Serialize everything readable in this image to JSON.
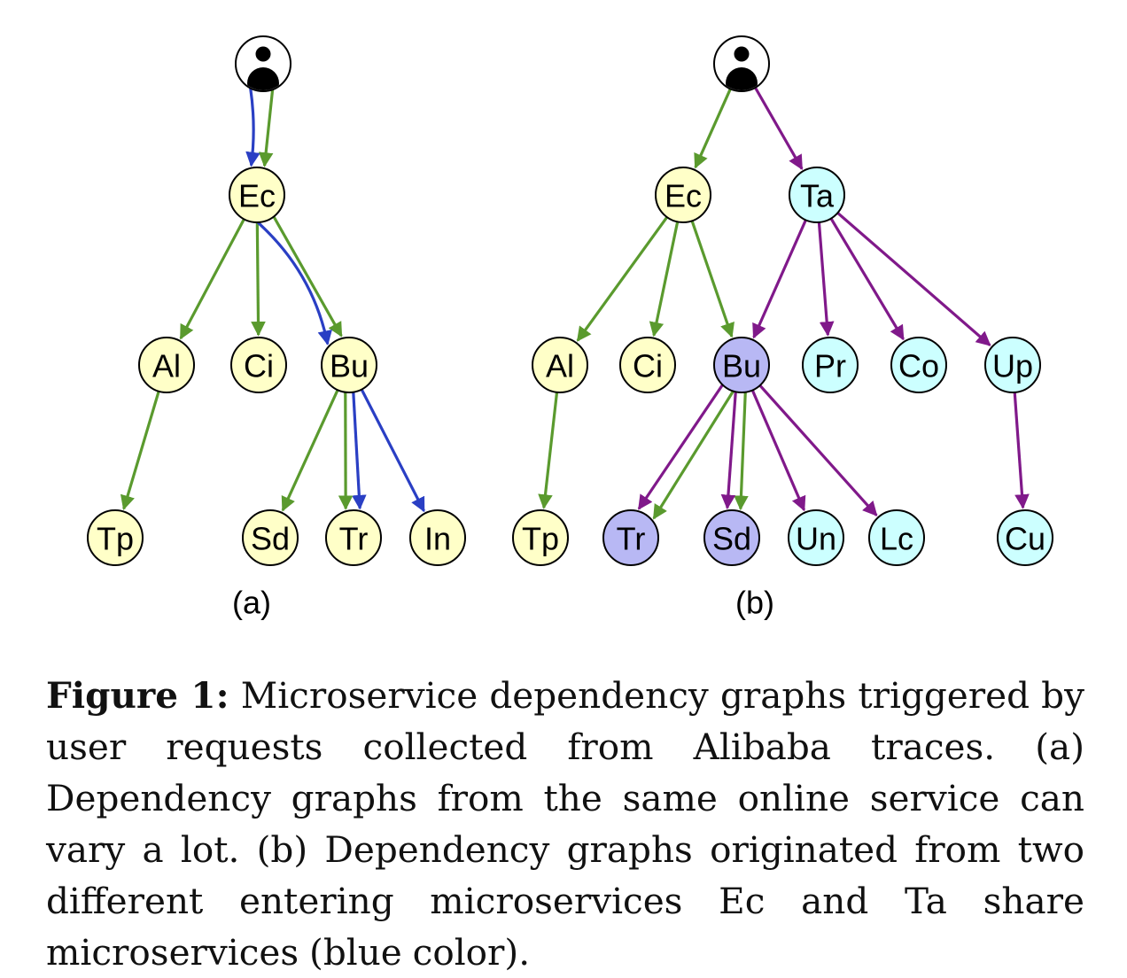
{
  "colors": {
    "green": "#5a9a2e",
    "blue": "#2a3fc4",
    "purple": "#80198a",
    "yellow_fill": "#ffffc8",
    "cyan_fill": "#ccffff",
    "lavender_fill": "#b8b8f4"
  },
  "graphs": [
    {
      "id": "a",
      "panel_label": "(a)",
      "nodes": [
        {
          "id": "user",
          "type": "user",
          "label": "",
          "fill": "white"
        },
        {
          "id": "Ec",
          "label": "Ec",
          "fill": "yellow"
        },
        {
          "id": "Al",
          "label": "Al",
          "fill": "yellow"
        },
        {
          "id": "Ci",
          "label": "Ci",
          "fill": "yellow"
        },
        {
          "id": "Bu",
          "label": "Bu",
          "fill": "yellow"
        },
        {
          "id": "Tp",
          "label": "Tp",
          "fill": "yellow"
        },
        {
          "id": "Sd",
          "label": "Sd",
          "fill": "yellow"
        },
        {
          "id": "Tr",
          "label": "Tr",
          "fill": "yellow"
        },
        {
          "id": "In",
          "label": "In",
          "fill": "yellow"
        }
      ],
      "edges": [
        {
          "from": "user",
          "to": "Ec",
          "color": "green"
        },
        {
          "from": "user",
          "to": "Ec",
          "color": "blue"
        },
        {
          "from": "Ec",
          "to": "Al",
          "color": "green"
        },
        {
          "from": "Ec",
          "to": "Ci",
          "color": "green"
        },
        {
          "from": "Ec",
          "to": "Bu",
          "color": "green"
        },
        {
          "from": "Ec",
          "to": "Bu",
          "color": "blue"
        },
        {
          "from": "Al",
          "to": "Tp",
          "color": "green"
        },
        {
          "from": "Bu",
          "to": "Sd",
          "color": "green"
        },
        {
          "from": "Bu",
          "to": "Tr",
          "color": "blue"
        },
        {
          "from": "Bu",
          "to": "Tr",
          "color": "green"
        },
        {
          "from": "Bu",
          "to": "In",
          "color": "blue"
        }
      ]
    },
    {
      "id": "b",
      "panel_label": "(b)",
      "nodes": [
        {
          "id": "user",
          "type": "user",
          "label": "",
          "fill": "white"
        },
        {
          "id": "Ec",
          "label": "Ec",
          "fill": "yellow"
        },
        {
          "id": "Ta",
          "label": "Ta",
          "fill": "cyan"
        },
        {
          "id": "Al",
          "label": "Al",
          "fill": "yellow"
        },
        {
          "id": "Ci",
          "label": "Ci",
          "fill": "yellow"
        },
        {
          "id": "Bu",
          "label": "Bu",
          "fill": "lavender"
        },
        {
          "id": "Pr",
          "label": "Pr",
          "fill": "cyan"
        },
        {
          "id": "Co",
          "label": "Co",
          "fill": "cyan"
        },
        {
          "id": "Up",
          "label": "Up",
          "fill": "cyan"
        },
        {
          "id": "Tp",
          "label": "Tp",
          "fill": "yellow"
        },
        {
          "id": "Tr",
          "label": "Tr",
          "fill": "lavender"
        },
        {
          "id": "Sd",
          "label": "Sd",
          "fill": "lavender"
        },
        {
          "id": "Un",
          "label": "Un",
          "fill": "cyan"
        },
        {
          "id": "Lc",
          "label": "Lc",
          "fill": "cyan"
        },
        {
          "id": "Cu",
          "label": "Cu",
          "fill": "cyan"
        }
      ],
      "edges": [
        {
          "from": "user",
          "to": "Ec",
          "color": "green"
        },
        {
          "from": "user",
          "to": "Ta",
          "color": "purple"
        },
        {
          "from": "Ec",
          "to": "Al",
          "color": "green"
        },
        {
          "from": "Ec",
          "to": "Ci",
          "color": "green"
        },
        {
          "from": "Ec",
          "to": "Bu",
          "color": "green"
        },
        {
          "from": "Ta",
          "to": "Bu",
          "color": "purple"
        },
        {
          "from": "Ta",
          "to": "Pr",
          "color": "purple"
        },
        {
          "from": "Ta",
          "to": "Co",
          "color": "purple"
        },
        {
          "from": "Ta",
          "to": "Up",
          "color": "purple"
        },
        {
          "from": "Al",
          "to": "Tp",
          "color": "green"
        },
        {
          "from": "Bu",
          "to": "Tr",
          "color": "green"
        },
        {
          "from": "Bu",
          "to": "Tr",
          "color": "purple"
        },
        {
          "from": "Bu",
          "to": "Sd",
          "color": "green"
        },
        {
          "from": "Bu",
          "to": "Sd",
          "color": "purple"
        },
        {
          "from": "Bu",
          "to": "Un",
          "color": "purple"
        },
        {
          "from": "Bu",
          "to": "Lc",
          "color": "purple"
        },
        {
          "from": "Up",
          "to": "Cu",
          "color": "purple"
        }
      ]
    }
  ],
  "caption": {
    "label": "Figure 1:",
    "text": "Microservice dependency graphs triggered by user requests collected from Alibaba traces. (a) Dependency graphs from the same online service can vary a lot. (b) Dependency graphs originated from two different entering microservices Ec and Ta share microservices (blue color)."
  }
}
